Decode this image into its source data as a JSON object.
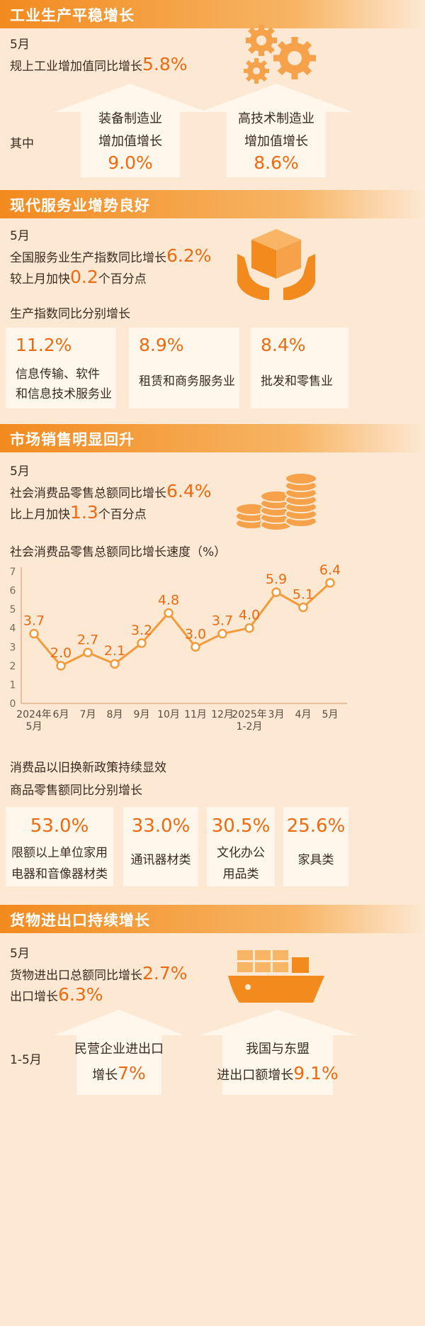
{
  "industry": {
    "title": "工业生产平稳增长",
    "month": "5月",
    "headline_prefix": "规上工业增加值同比增长",
    "headline_value": "5.8%",
    "qizhong": "其中",
    "equipment_line1": "装备制造业",
    "equipment_line2": "增加值增长",
    "equipment_value": "9.0%",
    "hightech_line1": "高技术制造业",
    "hightech_line2": "增加值增长",
    "hightech_value": "8.6%"
  },
  "services": {
    "title": "现代服务业增势良好",
    "month": "5月",
    "line1_prefix": "全国服务业生产指数同比增长",
    "line1_value": "6.2%",
    "line2_prefix": "较上月加快",
    "line2_value": "0.2",
    "line2_suffix": "个百分点",
    "sub": "生产指数同比分别增长",
    "cards": [
      {
        "value": "11.2%",
        "label1": "信息传输、软件",
        "label2": "和信息技术服务业"
      },
      {
        "value": "8.9%",
        "label1": "租赁和商务服务业",
        "label2": ""
      },
      {
        "value": "8.4%",
        "label1": "批发和零售业",
        "label2": ""
      }
    ]
  },
  "retail": {
    "title": "市场销售明显回升",
    "month": "5月",
    "line1_prefix": "社会消费品零售总额同比增长",
    "line1_value": "6.4%",
    "line2_prefix": "比上月加快",
    "line2_value": "1.3",
    "line2_suffix": "个百分点",
    "sub1": "消费品以旧换新政策持续显效",
    "sub2": "商品零售额同比分别增长",
    "cards": [
      {
        "value": "53.0%",
        "label1": "限额以上单位家用",
        "label2": "电器和音像器材类"
      },
      {
        "value": "33.0%",
        "label1": "通讯器材类",
        "label2": ""
      },
      {
        "value": "30.5%",
        "label1": "文化办公",
        "label2": "用品类"
      },
      {
        "value": "25.6%",
        "label1": "家具类",
        "label2": ""
      }
    ]
  },
  "chart_data": {
    "type": "line",
    "title": "社会消费品零售总额同比增长速度（%）",
    "categories": [
      "2024年\n5月",
      "6月",
      "7月",
      "8月",
      "9月",
      "10月",
      "11月",
      "12月",
      "2025年\n1-2月",
      "3月",
      "4月",
      "5月"
    ],
    "values": [
      3.7,
      2.0,
      2.7,
      2.1,
      3.2,
      4.8,
      3.0,
      3.7,
      4.0,
      5.9,
      5.1,
      6.4
    ],
    "value_labels": [
      "3.7",
      "2.0",
      "2.7",
      "2.1",
      "3.2",
      "4.8",
      "3.0",
      "3.7",
      "4.0",
      "5.9",
      "5.1",
      "6.4"
    ],
    "yticks": [
      "0",
      "1",
      "2",
      "3",
      "4",
      "5",
      "6",
      "7"
    ],
    "ylim": [
      0,
      7
    ],
    "color": "#f39a3a"
  },
  "trade": {
    "title": "货物进出口持续增长",
    "month": "5月",
    "line1_prefix": "货物进出口总额同比增长",
    "line1_value": "2.7%",
    "line2_prefix": "出口增长",
    "line2_value": "6.3%",
    "period": "1-5月",
    "private_line1": "民营企业进出口",
    "private_line2_prefix": "增长",
    "private_value": "7%",
    "asean_line1": "我国与东盟",
    "asean_line2_prefix": "进出口额增长",
    "asean_value": "9.1%"
  }
}
